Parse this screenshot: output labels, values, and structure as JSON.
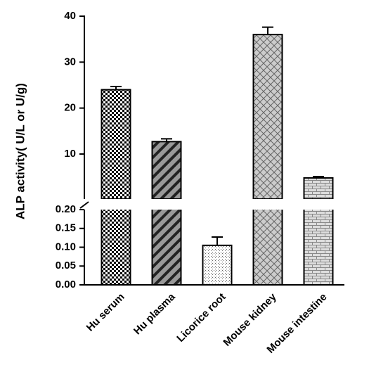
{
  "chart_data": {
    "type": "bar",
    "y_label": "ALP activity( U/L or U/g)",
    "categories": [
      "Hu serum",
      "Hu plasma",
      "Licorice root",
      "Mouse kidney",
      "Mouse intestine"
    ],
    "values": [
      24,
      12.7,
      0.105,
      36,
      4.8
    ],
    "errors": [
      0.7,
      0.6,
      0.022,
      1.6,
      0.3
    ],
    "patterns": [
      "checker",
      "diagonal",
      "dots",
      "herringbone",
      "brick"
    ],
    "segments": [
      {
        "ylim": [
          0,
          0.2
        ],
        "yticks": [
          {
            "value": 0,
            "label": "0.00"
          },
          {
            "value": 0.05,
            "label": "0.05"
          },
          {
            "value": 0.1,
            "label": "0.10"
          },
          {
            "value": 0.15,
            "label": "0.15"
          },
          {
            "value": 0.2,
            "label": "0.20"
          }
        ]
      },
      {
        "ylim": [
          0.2,
          40
        ],
        "yticks": [
          10,
          20,
          30,
          40
        ]
      }
    ]
  }
}
